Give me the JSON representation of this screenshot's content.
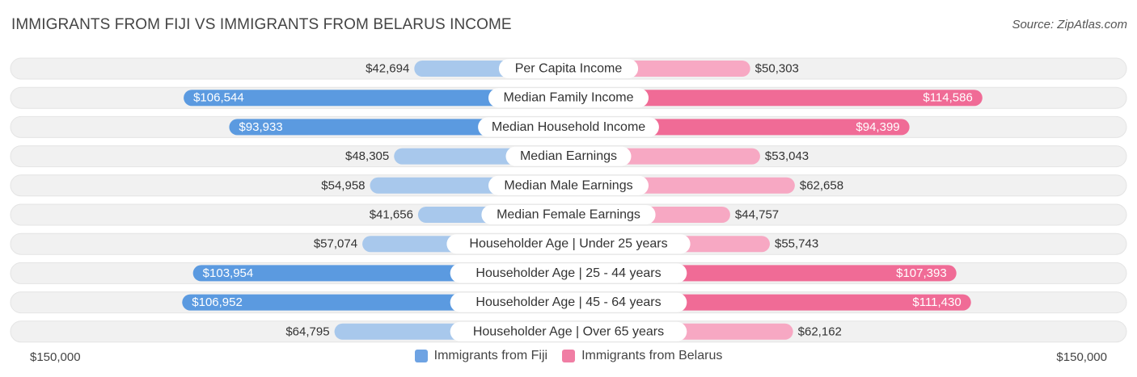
{
  "title": "IMMIGRANTS FROM FIJI VS IMMIGRANTS FROM BELARUS INCOME",
  "source": "Source: ZipAtlas.com",
  "axis": {
    "left_label": "$150,000",
    "right_label": "$150,000"
  },
  "colors": {
    "left_strong": "#5b9ae0",
    "left_light": "#a8c8ec",
    "right_strong": "#f06b96",
    "right_light": "#f7a8c3",
    "track": "#f1f1f1"
  },
  "legend": [
    {
      "label": "Immigrants from Fiji",
      "color": "#6ea3e3"
    },
    {
      "label": "Immigrants from Belarus",
      "color": "#f07ea4"
    }
  ],
  "chart_data": {
    "type": "bar",
    "orientation": "horizontal-diverging",
    "title": "IMMIGRANTS FROM FIJI VS IMMIGRANTS FROM BELARUS INCOME",
    "xlim": [
      0,
      150000
    ],
    "categories": [
      "Per Capita Income",
      "Median Family Income",
      "Median Household Income",
      "Median Earnings",
      "Median Male Earnings",
      "Median Female Earnings",
      "Householder Age | Under 25 years",
      "Householder Age | 25 - 44 years",
      "Householder Age | 45 - 64 years",
      "Householder Age | Over 65 years"
    ],
    "series": [
      {
        "name": "Immigrants from Fiji",
        "values": [
          42694,
          106544,
          93933,
          48305,
          54958,
          41656,
          57074,
          103954,
          106952,
          64795
        ],
        "labels": [
          "$42,694",
          "$106,544",
          "$93,933",
          "$48,305",
          "$54,958",
          "$41,656",
          "$57,074",
          "$103,954",
          "$106,952",
          "$64,795"
        ]
      },
      {
        "name": "Immigrants from Belarus",
        "values": [
          50303,
          114586,
          94399,
          53043,
          62658,
          44757,
          55743,
          107393,
          111430,
          62162
        ],
        "labels": [
          "$50,303",
          "$114,586",
          "$94,399",
          "$53,043",
          "$62,658",
          "$44,757",
          "$55,743",
          "$107,393",
          "$111,430",
          "$62,162"
        ]
      }
    ],
    "grid": false,
    "legend_position": "bottom-center"
  }
}
